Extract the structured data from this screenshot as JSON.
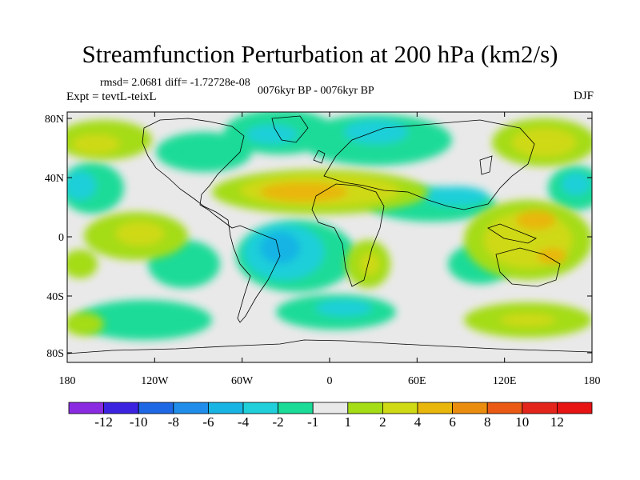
{
  "header": {
    "title": "Streamfunction Perturbation at 200 hPa (km2/s)",
    "stats": "rmsd= 2.0681 diff= -1.72728e-08",
    "experiment": "Expt = tevtL-teixL",
    "period": "0076kyr BP - 0076kyr BP",
    "season": "DJF"
  },
  "axes": {
    "lat_labels": [
      "80N",
      "40N",
      "0",
      "40S",
      "80S"
    ],
    "lon_labels": [
      "180",
      "120W",
      "60W",
      "0",
      "60E",
      "120E",
      "180"
    ]
  },
  "colorbar": {
    "labels": [
      "-12",
      "-10",
      "-8",
      "-6",
      "-4",
      "-2",
      "-1",
      "1",
      "2",
      "4",
      "6",
      "8",
      "10",
      "12"
    ],
    "colors": [
      "#8a2be2",
      "#3b23e0",
      "#1e68e6",
      "#1f8de9",
      "#18b4e4",
      "#1fcfd9",
      "#1adb98",
      "#e9e9e9",
      "#a4dc15",
      "#cfd914",
      "#e9b60c",
      "#ea8d0e",
      "#ea5a14",
      "#e3251b",
      "#e81313"
    ]
  },
  "map": {
    "projection": "cylindrical equidistant",
    "lon_range": [
      -180,
      180
    ],
    "lat_range": [
      -90,
      90
    ],
    "neutral_color": "#e9e9e9"
  }
}
